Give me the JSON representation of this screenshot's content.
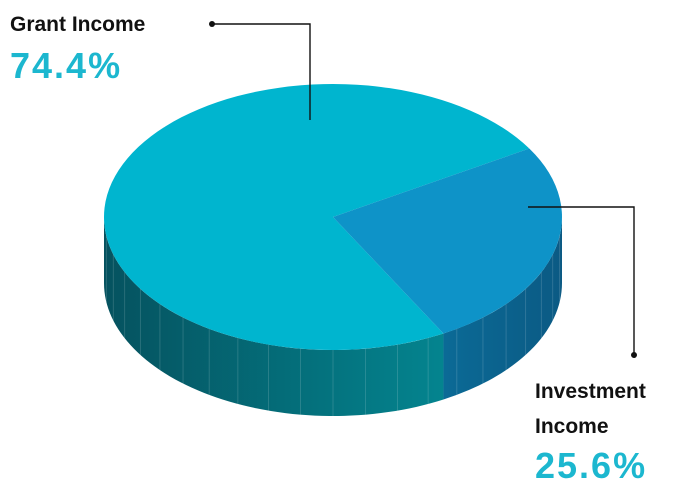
{
  "chart_data": {
    "type": "pie",
    "title": "",
    "categories": [
      "Grant Income",
      "Investment Income"
    ],
    "values": [
      74.4,
      25.6
    ],
    "unit": "%",
    "series": [
      {
        "label_lines": [
          "Grant Income"
        ],
        "value_text": "74.4%",
        "value": 74.4,
        "top_color": "#00b5cf",
        "side_color_dark": "#05525f",
        "side_color_light": "#04848f"
      },
      {
        "label_lines": [
          "Investment",
          "Income"
        ],
        "value_text": "25.6%",
        "value": 25.6,
        "top_color": "#0e93c8",
        "side_color_dark": "#0b6a96",
        "side_color_light": "#0b5a84"
      }
    ],
    "value_label_color": "#1cb7cf",
    "legend": "none",
    "grid": false
  }
}
